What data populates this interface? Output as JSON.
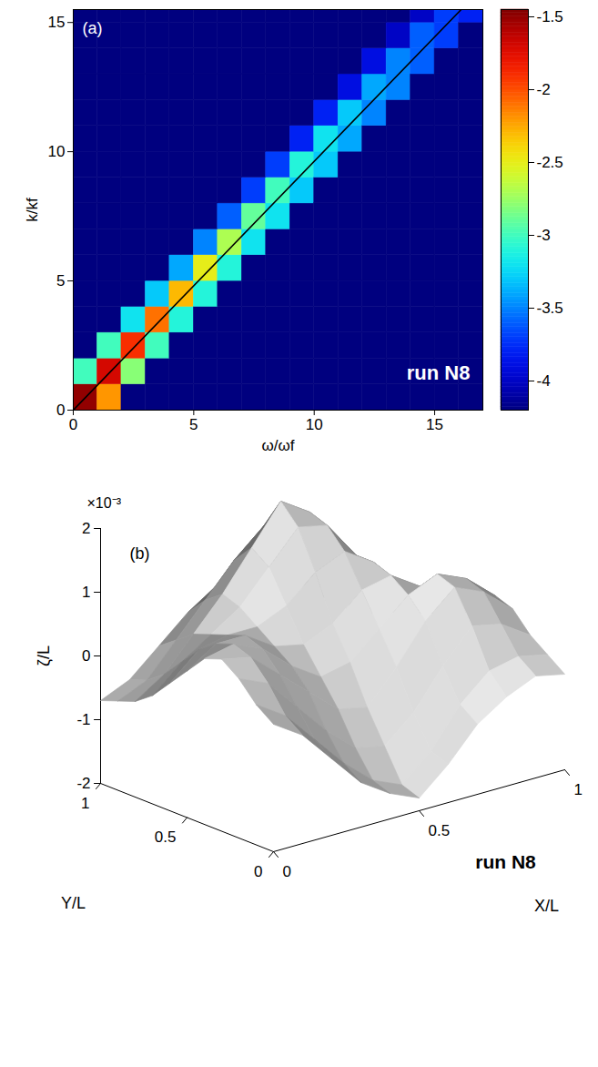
{
  "chart_data": [
    {
      "type": "heatmap",
      "panel": "(a)",
      "annotation": "run N8",
      "x_label": "ω/ωf",
      "y_label": "k/kf",
      "xlim": [
        0,
        17
      ],
      "ylim": [
        0,
        15.5
      ],
      "xticks": [
        0,
        5,
        10,
        15
      ],
      "yticks": [
        0,
        5,
        10,
        15
      ],
      "x_edges": [
        0,
        1,
        2,
        3,
        4,
        5,
        6,
        7,
        8,
        9,
        10,
        11,
        12,
        13,
        14,
        15,
        16,
        17
      ],
      "y_edges": [
        0,
        1,
        2,
        3,
        4,
        5,
        6,
        7,
        8,
        9,
        10,
        11,
        12,
        13,
        14,
        15,
        15.5
      ],
      "cells": [
        [
          -1.5,
          -2.2,
          -4.2,
          -4.2,
          -4.2,
          -4.2,
          -4.2,
          -4.2,
          -4.2,
          -4.2,
          -4.2,
          -4.2,
          -4.2,
          -4.2,
          -4.2,
          -4.2,
          -4.2
        ],
        [
          -3.0,
          -1.7,
          -2.8,
          -4.2,
          -4.2,
          -4.2,
          -4.2,
          -4.2,
          -4.2,
          -4.2,
          -4.2,
          -4.2,
          -4.2,
          -4.2,
          -4.2,
          -4.2,
          -4.2
        ],
        [
          -4.2,
          -3.0,
          -1.9,
          -3.0,
          -4.2,
          -4.2,
          -4.2,
          -4.2,
          -4.2,
          -4.2,
          -4.2,
          -4.2,
          -4.2,
          -4.2,
          -4.2,
          -4.2,
          -4.2
        ],
        [
          -4.2,
          -4.2,
          -3.2,
          -2.1,
          -3.1,
          -4.2,
          -4.2,
          -4.2,
          -4.2,
          -4.2,
          -4.2,
          -4.2,
          -4.2,
          -4.2,
          -4.2,
          -4.2,
          -4.2
        ],
        [
          -4.2,
          -4.2,
          -4.2,
          -3.3,
          -2.3,
          -3.1,
          -4.2,
          -4.2,
          -4.2,
          -4.2,
          -4.2,
          -4.2,
          -4.2,
          -4.2,
          -4.2,
          -4.2,
          -4.2
        ],
        [
          -4.2,
          -4.2,
          -4.2,
          -4.2,
          -3.4,
          -2.5,
          -3.1,
          -4.2,
          -4.2,
          -4.2,
          -4.2,
          -4.2,
          -4.2,
          -4.2,
          -4.2,
          -4.2,
          -4.2
        ],
        [
          -4.2,
          -4.2,
          -4.2,
          -4.2,
          -4.2,
          -3.5,
          -2.7,
          -3.2,
          -4.2,
          -4.2,
          -4.2,
          -4.2,
          -4.2,
          -4.2,
          -4.2,
          -4.2,
          -4.2
        ],
        [
          -4.2,
          -4.2,
          -4.2,
          -4.2,
          -4.2,
          -4.2,
          -3.6,
          -2.9,
          -3.2,
          -4.2,
          -4.2,
          -4.2,
          -4.2,
          -4.2,
          -4.2,
          -4.2,
          -4.2
        ],
        [
          -4.2,
          -4.2,
          -4.2,
          -4.2,
          -4.2,
          -4.2,
          -4.2,
          -3.7,
          -3.0,
          -3.3,
          -4.2,
          -4.2,
          -4.2,
          -4.2,
          -4.2,
          -4.2,
          -4.2
        ],
        [
          -4.2,
          -4.2,
          -4.2,
          -4.2,
          -4.2,
          -4.2,
          -4.2,
          -4.2,
          -3.7,
          -3.1,
          -3.3,
          -4.2,
          -4.2,
          -4.2,
          -4.2,
          -4.2,
          -4.2
        ],
        [
          -4.2,
          -4.2,
          -4.2,
          -4.2,
          -4.2,
          -4.2,
          -4.2,
          -4.2,
          -4.2,
          -3.8,
          -3.2,
          -3.4,
          -4.2,
          -4.2,
          -4.2,
          -4.2,
          -4.2
        ],
        [
          -4.2,
          -4.2,
          -4.2,
          -4.2,
          -4.2,
          -4.2,
          -4.2,
          -4.2,
          -4.2,
          -4.2,
          -3.8,
          -3.3,
          -3.5,
          -4.2,
          -4.2,
          -4.2,
          -4.2
        ],
        [
          -4.2,
          -4.2,
          -4.2,
          -4.2,
          -4.2,
          -4.2,
          -4.2,
          -4.2,
          -4.2,
          -4.2,
          -4.2,
          -3.9,
          -3.4,
          -3.5,
          -4.2,
          -4.2,
          -4.2
        ],
        [
          -4.2,
          -4.2,
          -4.2,
          -4.2,
          -4.2,
          -4.2,
          -4.2,
          -4.2,
          -4.2,
          -4.2,
          -4.2,
          -4.2,
          -3.9,
          -3.5,
          -3.6,
          -4.2,
          -4.2
        ],
        [
          -4.2,
          -4.2,
          -4.2,
          -4.2,
          -4.2,
          -4.2,
          -4.2,
          -4.2,
          -4.2,
          -4.2,
          -4.2,
          -4.2,
          -4.2,
          -4.0,
          -3.6,
          -3.7,
          -4.2
        ],
        [
          -4.2,
          -4.2,
          -4.2,
          -4.2,
          -4.2,
          -4.2,
          -4.2,
          -4.2,
          -4.2,
          -4.2,
          -4.2,
          -4.2,
          -4.2,
          -4.2,
          -4.0,
          -3.7,
          -3.8
        ]
      ],
      "colorbar": {
        "range": [
          -4.2,
          -1.45
        ],
        "ticks": [
          -1.5,
          -2,
          -2.5,
          -3,
          -3.5,
          -4
        ]
      },
      "line": {
        "x": [
          0,
          16.1
        ],
        "y": [
          0,
          15.5
        ],
        "color": "#000000"
      }
    },
    {
      "type": "surface",
      "panel": "(b)",
      "annotation": "run N8",
      "x_label": "X/L",
      "y_label": "Y/L",
      "z_label": "ζ/L",
      "z_multiplier": "×10⁻³",
      "xlim": [
        0,
        1
      ],
      "ylim": [
        0,
        1
      ],
      "zlim": [
        -2,
        2
      ],
      "xticks": [
        0,
        0.5,
        1
      ],
      "yticks": [
        0,
        0.5,
        1
      ],
      "zticks": [
        -2,
        -1,
        0,
        1,
        2
      ],
      "color": "#d2d2d2",
      "x": [
        0,
        0.1,
        0.2,
        0.3,
        0.4,
        0.5,
        0.6,
        0.7,
        0.8,
        0.9,
        1
      ],
      "y": [
        0,
        0.1,
        0.2,
        0.3,
        0.4,
        0.5,
        0.6,
        0.7,
        0.8,
        0.9,
        1
      ],
      "z": [
        [
          0.0,
          -0.3,
          -0.8,
          -1.3,
          -1.6,
          -1.8,
          -1.4,
          -0.9,
          -0.6,
          -0.4,
          -0.5
        ],
        [
          0.2,
          -0.1,
          -0.6,
          -1.1,
          -1.5,
          -1.7,
          -1.3,
          -0.7,
          -0.3,
          -0.2,
          -0.3
        ],
        [
          0.5,
          0.3,
          -0.2,
          -0.7,
          -1.1,
          -1.2,
          -0.8,
          -0.2,
          0.3,
          0.2,
          -0.1
        ],
        [
          0.7,
          0.6,
          0.2,
          -0.2,
          -0.6,
          -0.7,
          -0.2,
          0.4,
          0.8,
          0.6,
          0.2
        ],
        [
          0.6,
          0.7,
          0.5,
          0.1,
          -0.2,
          -0.1,
          0.3,
          0.7,
          0.9,
          0.7,
          0.3
        ],
        [
          0.3,
          0.6,
          0.6,
          0.3,
          0.2,
          0.4,
          0.8,
          0.9,
          0.6,
          0.3,
          0.0
        ],
        [
          0.0,
          0.4,
          0.5,
          0.5,
          0.7,
          1.1,
          1.3,
          1.0,
          0.5,
          0.1,
          -0.2
        ],
        [
          -0.3,
          0.1,
          0.4,
          0.7,
          1.2,
          1.7,
          1.6,
          1.0,
          0.4,
          0.0,
          -0.3
        ],
        [
          -0.5,
          -0.2,
          0.3,
          0.8,
          1.4,
          2.0,
          1.7,
          0.9,
          0.3,
          -0.1,
          -0.4
        ],
        [
          -0.6,
          -0.4,
          0.1,
          0.6,
          1.1,
          1.5,
          1.2,
          0.6,
          0.1,
          -0.3,
          -0.5
        ],
        [
          -0.7,
          -0.5,
          -0.1,
          0.3,
          0.6,
          0.8,
          0.6,
          0.2,
          -0.2,
          -0.5,
          -0.6
        ]
      ]
    }
  ]
}
